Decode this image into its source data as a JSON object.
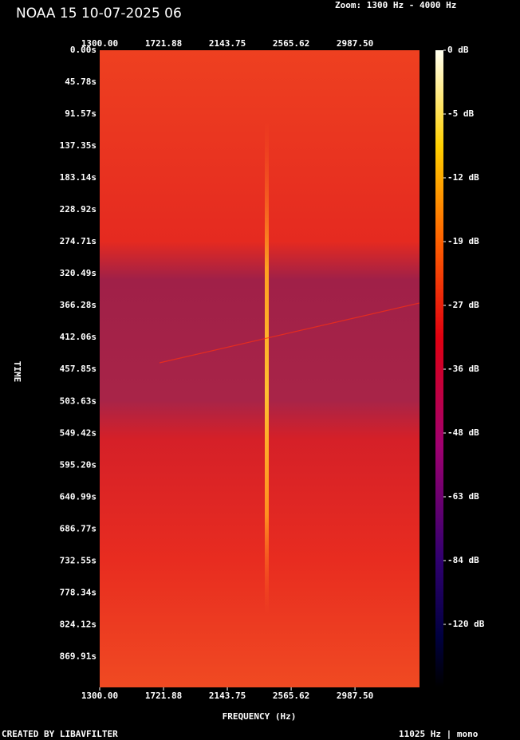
{
  "chart_data": {
    "type": "spectrogram",
    "title": "NOAA 15 10-07-2025 06",
    "subtitle": "Zoom: 1300 Hz - 4000 Hz",
    "xlabel": "FREQUENCY (Hz)",
    "ylabel": "TIME",
    "footer_left": "CREATED BY LIBAVFILTER",
    "footer_right": "11025 Hz | mono",
    "xlim": [
      1300,
      3414
    ],
    "xticks": [
      {
        "value": 1300,
        "label": "1300.00"
      },
      {
        "value": 1721.88,
        "label": "1721.88"
      },
      {
        "value": 2143.75,
        "label": "2143.75"
      },
      {
        "value": 2565.62,
        "label": "2565.62"
      },
      {
        "value": 2987.5,
        "label": "2987.50"
      }
    ],
    "ylim": [
      0,
      914
    ],
    "yticks": [
      {
        "value": 0,
        "label": "0.00s"
      },
      {
        "value": 45.78,
        "label": "45.78s"
      },
      {
        "value": 91.57,
        "label": "91.57s"
      },
      {
        "value": 137.35,
        "label": "137.35s"
      },
      {
        "value": 183.14,
        "label": "183.14s"
      },
      {
        "value": 228.92,
        "label": "228.92s"
      },
      {
        "value": 274.71,
        "label": "274.71s"
      },
      {
        "value": 320.49,
        "label": "320.49s"
      },
      {
        "value": 366.28,
        "label": "366.28s"
      },
      {
        "value": 412.06,
        "label": "412.06s"
      },
      {
        "value": 457.85,
        "label": "457.85s"
      },
      {
        "value": 503.63,
        "label": "503.63s"
      },
      {
        "value": 549.42,
        "label": "549.42s"
      },
      {
        "value": 595.2,
        "label": "595.20s"
      },
      {
        "value": 640.99,
        "label": "640.99s"
      },
      {
        "value": 686.77,
        "label": "686.77s"
      },
      {
        "value": 732.55,
        "label": "732.55s"
      },
      {
        "value": 778.34,
        "label": "778.34s"
      },
      {
        "value": 824.12,
        "label": "824.12s"
      },
      {
        "value": 869.91,
        "label": "869.91s"
      }
    ],
    "colorbar_ticks": [
      {
        "value": 0,
        "label": "0 dB"
      },
      {
        "value": -5,
        "label": "-5 dB"
      },
      {
        "value": -12,
        "label": "-12 dB"
      },
      {
        "value": -19,
        "label": "-19 dB"
      },
      {
        "value": -27,
        "label": "-27 dB"
      },
      {
        "value": -36,
        "label": "-36 dB"
      },
      {
        "value": -48,
        "label": "-48 dB"
      },
      {
        "value": -63,
        "label": "-63 dB"
      },
      {
        "value": -84,
        "label": "-84 dB"
      },
      {
        "value": -120,
        "label": "-120 dB"
      }
    ]
  }
}
